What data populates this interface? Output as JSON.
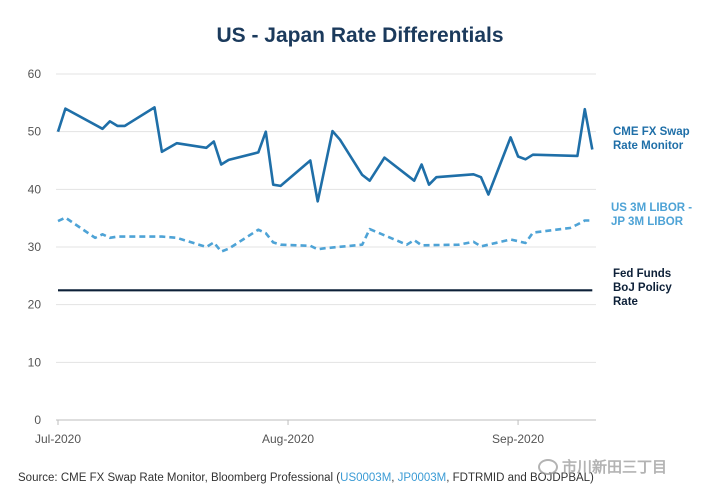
{
  "chart_data": {
    "type": "line",
    "title": "US - Japan Rate Differentials",
    "xlabel": "",
    "ylabel": "",
    "ylim": [
      0,
      60
    ],
    "yticks": [
      0,
      10,
      20,
      30,
      40,
      50,
      60
    ],
    "xticks": [
      {
        "label": "Jul-2020",
        "x": 0
      },
      {
        "label": "Aug-2020",
        "x": 31
      },
      {
        "label": "Sep-2020",
        "x": 62
      }
    ],
    "xlim": [
      0,
      74
    ],
    "grid": true,
    "series": [
      {
        "name": "CME FX Swap Rate Monitor",
        "legend": "CME FX Swap\nRate Monitor",
        "color": "#1f6fa8",
        "style": "solid",
        "x": [
          0,
          1,
          6,
          7,
          8,
          9,
          13,
          14,
          16,
          20,
          21,
          22,
          23,
          27,
          28,
          29,
          30,
          34,
          35,
          37,
          38,
          41,
          42,
          44,
          48,
          49,
          50,
          51,
          56,
          57,
          58,
          61,
          62,
          63,
          64,
          70,
          71,
          72
        ],
        "y": [
          50,
          54,
          50.5,
          51.8,
          51,
          51,
          54.2,
          46.5,
          48,
          47.2,
          48.3,
          44.3,
          45.1,
          46.4,
          50,
          40.8,
          40.6,
          45,
          37.9,
          50.1,
          48.6,
          42.5,
          41.5,
          45.5,
          41.5,
          44.3,
          40.8,
          42.1,
          42.6,
          42.1,
          39.1,
          49,
          45.7,
          45.2,
          46,
          45.8,
          53.9,
          46.9
        ]
      },
      {
        "name": "US 3M LIBOR - JP 3M LIBOR",
        "legend": "US 3M LIBOR -\nJP 3M LIBOR",
        "color": "#4ea3d6",
        "style": "dashed",
        "x": [
          0,
          1,
          5,
          6,
          7,
          8,
          14,
          16,
          20,
          21,
          22,
          23,
          27,
          28,
          29,
          30,
          34,
          35,
          36,
          41,
          42,
          47,
          48,
          49,
          54,
          56,
          57,
          61,
          62,
          63,
          64,
          69,
          70,
          71,
          72
        ],
        "y": [
          34.5,
          35.1,
          31.6,
          32.2,
          31.6,
          31.8,
          31.8,
          31.6,
          30,
          30.8,
          29.2,
          29.7,
          33,
          32.4,
          30.8,
          30.4,
          30.2,
          29.6,
          29.8,
          30.4,
          33.1,
          30.4,
          31.2,
          30.3,
          30.4,
          30.9,
          30.1,
          31.3,
          31,
          30.7,
          32.5,
          33.3,
          33.9,
          34.6,
          34.6
        ]
      },
      {
        "name": "Fed Funds BoJ Policy Rate",
        "legend": "Fed Funds\nBoJ Policy\nRate",
        "color": "#0d2038",
        "style": "solid",
        "x": [
          0,
          72
        ],
        "y": [
          22.5,
          22.5
        ]
      }
    ]
  },
  "source": {
    "prefix": "Source: CME FX Swap Rate Monitor, Bloomberg Professional (",
    "link1": "US0003M",
    "sep": ", ",
    "link2": "JP0003M",
    "suffix": ", FDTRMID and BOJDPBAL)"
  },
  "watermark": "市川新田三丁目"
}
